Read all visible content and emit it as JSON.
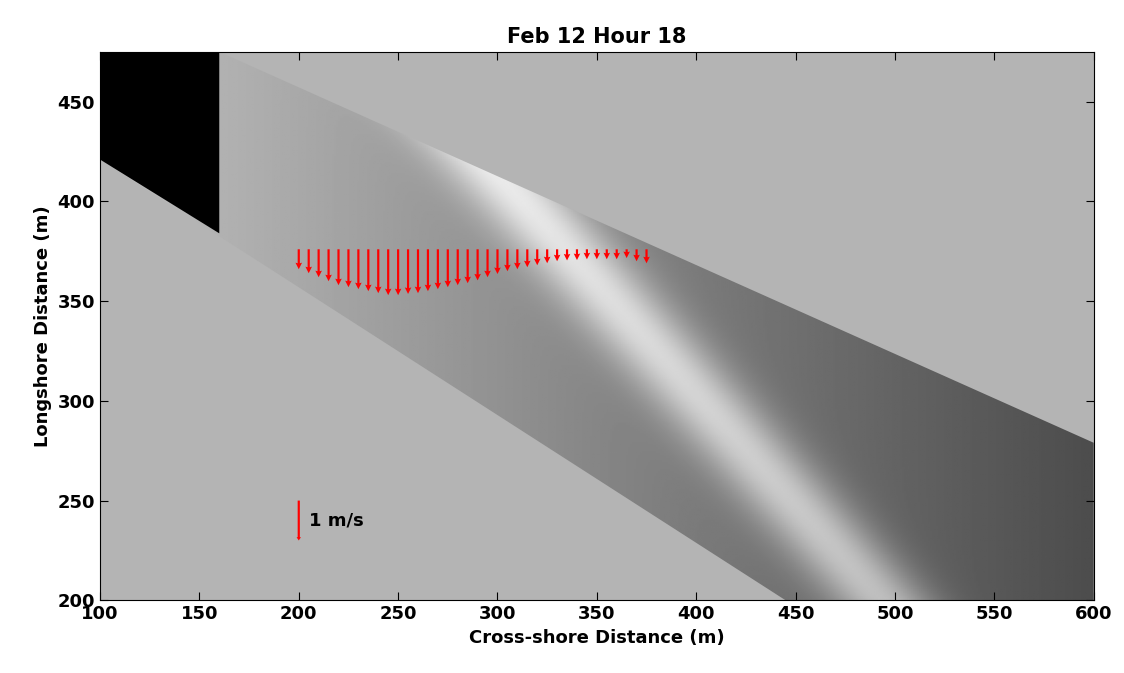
{
  "chart_data": {
    "type": "quiver",
    "title": "Feb 12 Hour 18",
    "x_label": "Cross-shore Distance (m)",
    "y_label": "Longshore Distance (m)",
    "xlim": [
      100,
      600
    ],
    "ylim": [
      200,
      475
    ],
    "xticks": [
      100,
      150,
      200,
      250,
      300,
      350,
      400,
      450,
      500,
      550,
      600
    ],
    "yticks": [
      200,
      250,
      300,
      350,
      400,
      450
    ],
    "color": "#ff0000",
    "swath": [
      [
        100,
        475
      ],
      [
        160,
        475
      ],
      [
        600,
        279
      ],
      [
        600,
        200
      ],
      [
        445,
        200
      ],
      [
        100,
        421
      ]
    ],
    "shadow": [
      [
        100,
        475
      ],
      [
        160,
        475
      ],
      [
        160,
        384
      ],
      [
        100,
        421
      ]
    ],
    "x": [
      200,
      205,
      210,
      215,
      220,
      225,
      230,
      235,
      240,
      245,
      250,
      255,
      260,
      265,
      270,
      275,
      280,
      285,
      290,
      295,
      300,
      305,
      310,
      315,
      320,
      325,
      330,
      335,
      340,
      345,
      350,
      355,
      360,
      365,
      370,
      375
    ],
    "y": [
      376,
      376,
      376,
      376,
      376,
      376,
      376,
      376,
      376,
      376,
      376,
      376,
      376,
      376,
      376,
      376,
      376,
      376,
      376,
      376,
      376,
      376,
      376,
      376,
      376,
      376,
      376,
      376,
      376,
      376,
      376,
      376,
      376,
      376,
      376,
      376
    ],
    "u": [
      0,
      0,
      0,
      0,
      0,
      0,
      0,
      0,
      0,
      0,
      0,
      0,
      0,
      0,
      0,
      0,
      0,
      0,
      0,
      0,
      0,
      0,
      0,
      0,
      0,
      0,
      0,
      0,
      0,
      0,
      0,
      0,
      0,
      0,
      0,
      0
    ],
    "v": [
      -0.5,
      -0.6,
      -0.7,
      -0.8,
      -0.9,
      -0.95,
      -1.0,
      -1.05,
      -1.1,
      -1.15,
      -1.15,
      -1.12,
      -1.1,
      -1.05,
      -1.0,
      -0.95,
      -0.9,
      -0.85,
      -0.78,
      -0.7,
      -0.62,
      -0.55,
      -0.5,
      -0.45,
      -0.4,
      -0.35,
      -0.3,
      -0.28,
      -0.27,
      -0.25,
      -0.25,
      -0.25,
      -0.25,
      -0.22,
      -0.3,
      -0.35
    ],
    "key": {
      "x": 200,
      "y": 250,
      "value": 1,
      "label": "1 m/s"
    }
  }
}
